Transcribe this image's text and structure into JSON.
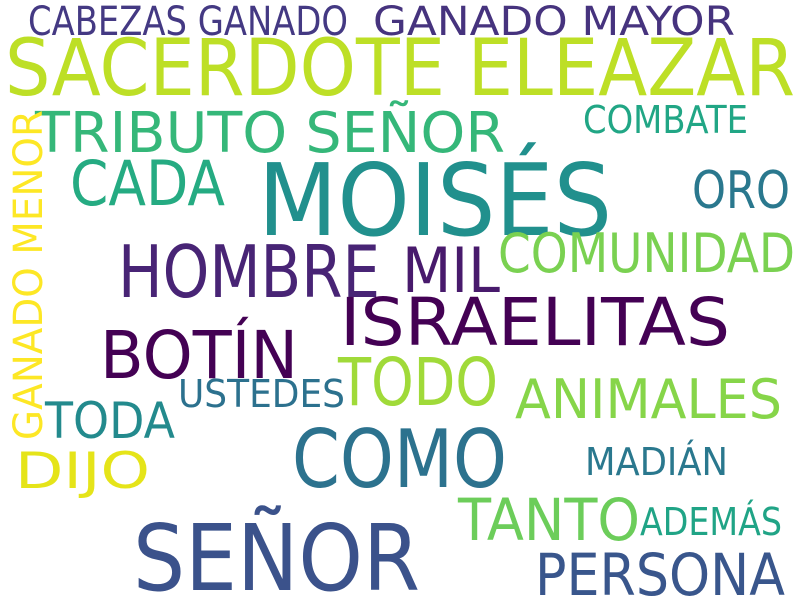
{
  "words": [
    {
      "text": "CABEZAS GANADO"
    },
    {
      "text": "GANADO MAYOR"
    },
    {
      "text": "SACERDOTE ELEAZAR"
    },
    {
      "text": "TRIBUTO SEÑOR"
    },
    {
      "text": "COMBATE"
    },
    {
      "text": "GANADO MENOR"
    },
    {
      "text": "CADA"
    },
    {
      "text": "MOISÉS"
    },
    {
      "text": "ORO"
    },
    {
      "text": "HOMBRE"
    },
    {
      "text": "MIL"
    },
    {
      "text": "COMUNIDAD"
    },
    {
      "text": "ISRAELITAS"
    },
    {
      "text": "BOTÍN"
    },
    {
      "text": "TODO"
    },
    {
      "text": "USTEDES"
    },
    {
      "text": "ANIMALES"
    },
    {
      "text": "TODA"
    },
    {
      "text": "COMO"
    },
    {
      "text": "DIJO"
    },
    {
      "text": "MADIÁN"
    },
    {
      "text": "TANTO"
    },
    {
      "text": "ADEMÁS"
    },
    {
      "text": "SEÑOR"
    },
    {
      "text": "PERSONA"
    }
  ]
}
